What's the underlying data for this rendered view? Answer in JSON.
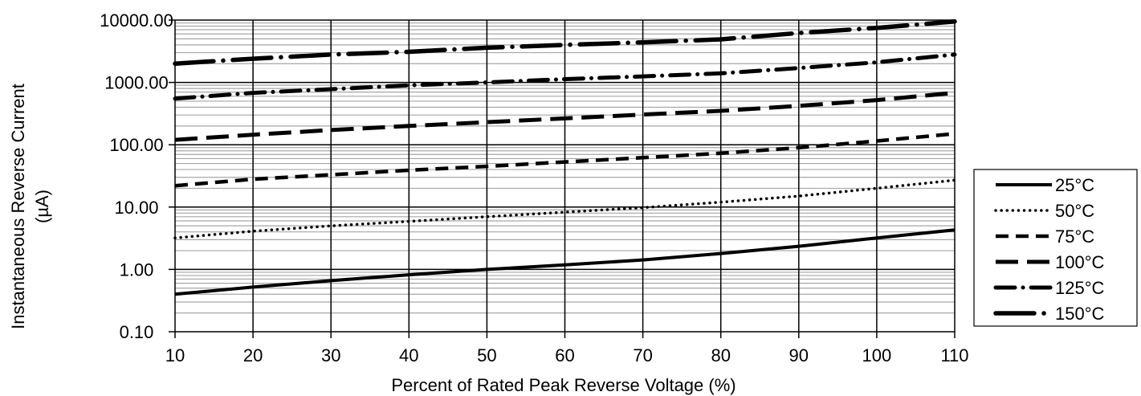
{
  "chart_data": {
    "type": "line",
    "x_axis": {
      "label": "Percent of  Rated Peak Reverse Voltage (%)",
      "min": 10,
      "max": 110,
      "ticks": [
        10,
        20,
        30,
        40,
        50,
        60,
        70,
        80,
        90,
        100,
        110
      ],
      "tick_labels": [
        "10",
        "20",
        "30",
        "40",
        "50",
        "60",
        "70",
        "80",
        "90",
        "100",
        "110"
      ]
    },
    "y_axis": {
      "label_line1": "Instantaneous Reverse Current",
      "label_line2": "(µA)",
      "scale": "log",
      "min": 0.1,
      "max": 10000,
      "ticks": [
        0.1,
        1,
        10,
        100,
        1000,
        10000
      ],
      "tick_labels": [
        "0.10",
        "1.00",
        "10.00",
        "100.00",
        "1000.00",
        "10000.00"
      ]
    },
    "grid": {
      "major": true,
      "minor": true
    },
    "legend_position": "right",
    "x": [
      10,
      20,
      30,
      40,
      50,
      60,
      70,
      80,
      90,
      100,
      110
    ],
    "series": [
      {
        "name": "25°C",
        "dash": "solid",
        "values": [
          0.4,
          0.52,
          0.66,
          0.82,
          1.0,
          1.18,
          1.42,
          1.8,
          2.35,
          3.2,
          4.3
        ]
      },
      {
        "name": "50°C",
        "dash": "dotted",
        "values": [
          3.2,
          4.1,
          5.0,
          5.9,
          7.0,
          8.3,
          9.8,
          12.0,
          15.0,
          20.0,
          27.0
        ]
      },
      {
        "name": "75°C",
        "dash": "short-dash",
        "values": [
          22,
          28,
          33,
          39,
          45,
          53,
          62,
          73,
          90,
          115,
          150
        ]
      },
      {
        "name": "100°C",
        "dash": "long-dash",
        "values": [
          120,
          145,
          172,
          200,
          230,
          265,
          305,
          350,
          420,
          520,
          680
        ]
      },
      {
        "name": "125°C",
        "dash": "dash-dot",
        "values": [
          550,
          680,
          780,
          900,
          1000,
          1130,
          1250,
          1400,
          1700,
          2100,
          2800
        ]
      },
      {
        "name": "150°C",
        "dash": "long-dash-dot",
        "values": [
          2000,
          2400,
          2800,
          3100,
          3600,
          4000,
          4400,
          4900,
          6200,
          7500,
          9500
        ]
      }
    ],
    "line_color": "#000000",
    "grid_major_color": "#000000",
    "grid_minor_color": "#a6a6a6"
  }
}
